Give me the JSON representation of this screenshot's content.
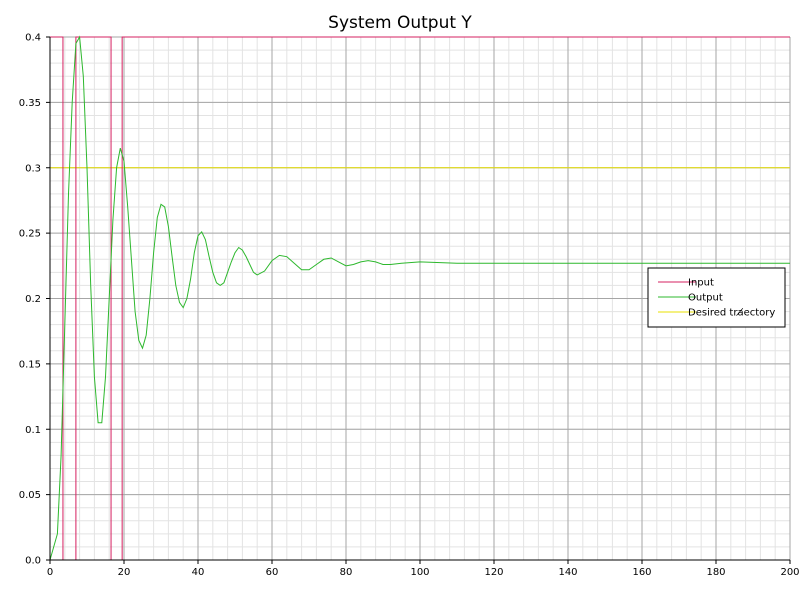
{
  "chart_data": {
    "type": "line",
    "title": "System Output Y",
    "xlabel": "",
    "ylabel": "",
    "xlim": [
      0,
      200
    ],
    "ylim": [
      0,
      0.4
    ],
    "xticks": [
      0,
      20,
      40,
      60,
      80,
      100,
      120,
      140,
      160,
      180,
      200
    ],
    "yticks": [
      0,
      0.05,
      0.1,
      0.15,
      0.2,
      0.25,
      0.3,
      0.35,
      0.4
    ],
    "xtick_labels": [
      "0",
      "20",
      "40",
      "60",
      "80",
      "100",
      "120",
      "140",
      "160",
      "180",
      "200"
    ],
    "ytick_labels": [
      "0.0",
      "0.05",
      "0.1",
      "0.15",
      "0.2",
      "0.25",
      "0.3",
      "0.35",
      "0.4"
    ],
    "grid": true,
    "legend_position": "right",
    "series": [
      {
        "name": "Input",
        "color": "#d62060",
        "x": [
          0,
          3.5,
          3.5,
          7,
          7,
          16.5,
          16.5,
          19.5,
          19.5,
          200
        ],
        "y": [
          0.4,
          0.4,
          0,
          0,
          0.4,
          0.4,
          0,
          0,
          0.4,
          0.4
        ]
      },
      {
        "name": "Output",
        "color": "#2db82d",
        "x": [
          0,
          2,
          3,
          4,
          5,
          6,
          7,
          8,
          9,
          10,
          11,
          12,
          13,
          14,
          15,
          16,
          17,
          18,
          19,
          20,
          21,
          22,
          23,
          24,
          25,
          26,
          27,
          28,
          29,
          30,
          31,
          32,
          33,
          34,
          35,
          36,
          37,
          38,
          39,
          40,
          41,
          42,
          43,
          44,
          45,
          46,
          47,
          48,
          49,
          50,
          51,
          52,
          53,
          54,
          55,
          56,
          58,
          60,
          62,
          64,
          66,
          68,
          70,
          72,
          74,
          76,
          78,
          80,
          82,
          84,
          86,
          88,
          90,
          92,
          95,
          100,
          110,
          120,
          130,
          140,
          160,
          180,
          200
        ],
        "y": [
          0,
          0.02,
          0.08,
          0.18,
          0.28,
          0.35,
          0.395,
          0.4,
          0.37,
          0.3,
          0.21,
          0.14,
          0.105,
          0.105,
          0.14,
          0.2,
          0.26,
          0.3,
          0.315,
          0.305,
          0.27,
          0.23,
          0.19,
          0.168,
          0.162,
          0.172,
          0.2,
          0.235,
          0.262,
          0.272,
          0.27,
          0.255,
          0.232,
          0.21,
          0.197,
          0.193,
          0.2,
          0.215,
          0.235,
          0.248,
          0.251,
          0.245,
          0.232,
          0.22,
          0.212,
          0.21,
          0.212,
          0.22,
          0.228,
          0.235,
          0.239,
          0.237,
          0.232,
          0.226,
          0.22,
          0.218,
          0.221,
          0.229,
          0.233,
          0.232,
          0.227,
          0.222,
          0.222,
          0.226,
          0.23,
          0.231,
          0.228,
          0.225,
          0.226,
          0.228,
          0.229,
          0.228,
          0.226,
          0.226,
          0.227,
          0.228,
          0.227,
          0.227,
          0.227,
          0.227,
          0.227,
          0.227,
          0.227
        ]
      },
      {
        "name": "Desired tra̸ectory",
        "color": "#e8e000",
        "x": [
          0,
          200
        ],
        "y": [
          0.3,
          0.3
        ]
      }
    ]
  }
}
